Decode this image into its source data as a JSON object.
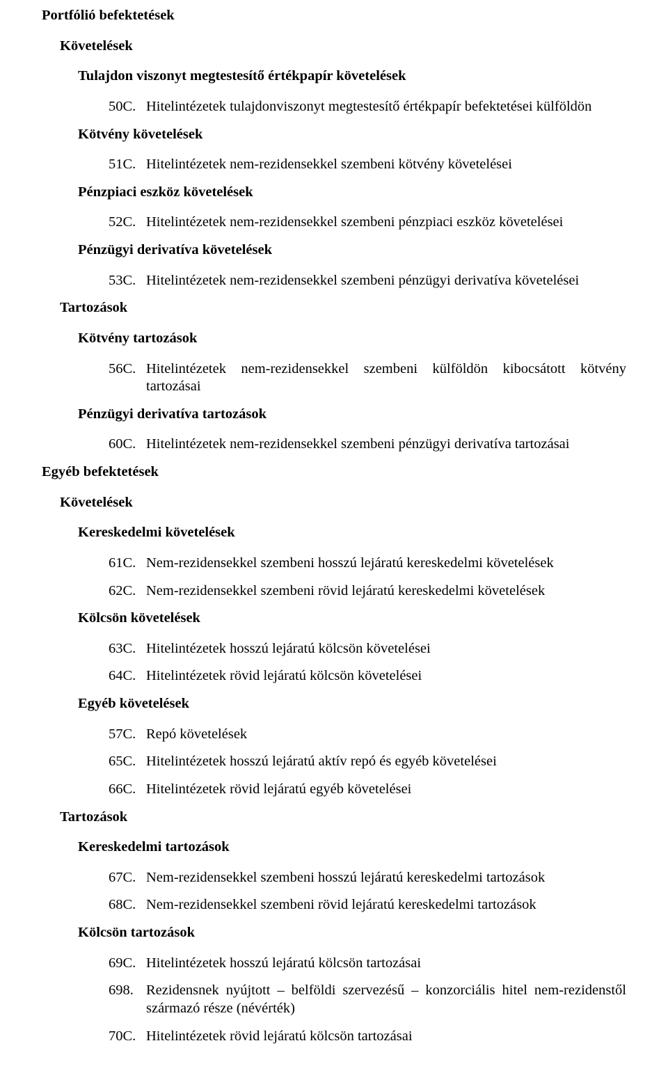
{
  "portfolio": {
    "title": "Portfólió befektetések",
    "kovetelesek_title": "Követelések",
    "tulajdon_title": "Tulajdon viszonyt megtestesítő értékpapír követelések",
    "item50c_num": "50C.",
    "item50c_text": "Hitelintézetek tulajdonviszonyt megtestesítő értékpapír befektetései külföldön",
    "kotveny_kov_title": "Kötvény követelések",
    "item51c_num": "51C.",
    "item51c_text": "Hitelintézetek nem-rezidensekkel szembeni kötvény követelései",
    "penzpiaci_title": "Pénzpiaci eszköz követelések",
    "item52c_num": "52C.",
    "item52c_text": "Hitelintézetek nem-rezidensekkel szembeni pénzpiaci eszköz követelései",
    "penzugyi_deriv_kov_title": "Pénzügyi derivatíva követelések",
    "item53c_num": "53C.",
    "item53c_text": "Hitelintézetek nem-rezidensekkel szembeni pénzügyi derivatíva követelései",
    "tartozasok_title": "Tartozások",
    "kotveny_tart_title": "Kötvény tartozások",
    "item56c_num": "56C.",
    "item56c_text": "Hitelintézetek nem-rezidensekkel szembeni külföldön kibocsátott kötvény tartozásai",
    "penzugyi_deriv_tart_title": "Pénzügyi derivatíva tartozások",
    "item60c_num": "60C.",
    "item60c_text": "Hitelintézetek nem-rezidensekkel szembeni pénzügyi derivatíva tartozásai"
  },
  "egyeb": {
    "title": "Egyéb befektetések",
    "kovetelesek_title": "Követelések",
    "keresk_kov_title": "Kereskedelmi követelések",
    "item61c_num": "61C.",
    "item61c_text": "Nem-rezidensekkel szembeni hosszú lejáratú kereskedelmi követelések",
    "item62c_num": "62C.",
    "item62c_text": "Nem-rezidensekkel szembeni rövid lejáratú kereskedelmi követelések",
    "kolcson_kov_title": "Kölcsön követelések",
    "item63c_num": "63C.",
    "item63c_text": "Hitelintézetek hosszú lejáratú kölcsön követelései",
    "item64c_num": "64C.",
    "item64c_text": "Hitelintézetek rövid lejáratú kölcsön követelései",
    "egyeb_kov_title": "Egyéb követelések",
    "item57c_num": "57C.",
    "item57c_text": "Repó követelések",
    "item65c_num": "65C.",
    "item65c_text": "Hitelintézetek hosszú lejáratú aktív repó és egyéb követelései",
    "item66c_num": "66C.",
    "item66c_text": "Hitelintézetek rövid lejáratú egyéb követelései",
    "tartozasok_title": "Tartozások",
    "keresk_tart_title": "Kereskedelmi tartozások",
    "item67c_num": "67C.",
    "item67c_text": "Nem-rezidensekkel szembeni hosszú lejáratú kereskedelmi tartozások",
    "item68c_num": "68C.",
    "item68c_text": "Nem-rezidensekkel szembeni rövid lejáratú kereskedelmi tartozások",
    "kolcson_tart_title": "Kölcsön tartozások",
    "item69c_num": "69C.",
    "item69c_text": "Hitelintézetek hosszú lejáratú kölcsön tartozásai",
    "item698_num": "698.",
    "item698_text": "Rezidensnek nyújtott – belföldi szervezésű – konzorciális hitel nem-rezidenstől származó része (névérték)",
    "item70c_num": "70C.",
    "item70c_text": "Hitelintézetek rövid lejáratú kölcsön tartozásai"
  }
}
